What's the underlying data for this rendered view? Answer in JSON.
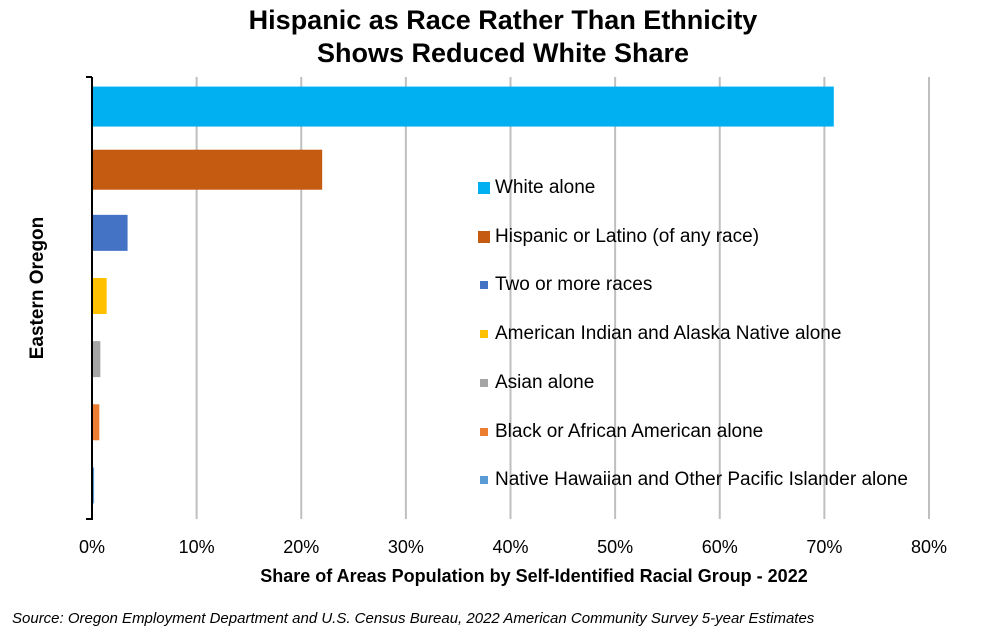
{
  "chart_data": {
    "type": "bar",
    "orientation": "horizontal",
    "title": "Hispanic as Race Rather Than Ethnicity Shows Reduced White Share",
    "title_lines": [
      "Hispanic as Race Rather Than Ethnicity",
      "Shows Reduced White Share"
    ],
    "xlabel": "Share of Areas Population by Self-Identified Racial Group - 2022",
    "ylabel": "Eastern Oregon",
    "categories": [
      "Eastern Oregon"
    ],
    "xlim": [
      0,
      80
    ],
    "x_ticks": [
      0,
      10,
      20,
      30,
      40,
      50,
      60,
      70,
      80
    ],
    "x_tick_labels": [
      "0%",
      "10%",
      "20%",
      "30%",
      "40%",
      "50%",
      "60%",
      "70%",
      "80%"
    ],
    "grid": "vertical",
    "legend_position": "right-center",
    "series": [
      {
        "name": "White alone",
        "values": [
          70.9
        ],
        "color": "#00B0F0"
      },
      {
        "name": "Hispanic or Latino (of any race)",
        "values": [
          22.0
        ],
        "color": "#C55A11"
      },
      {
        "name": "Two or more races",
        "values": [
          3.4
        ],
        "color": "#4472C4"
      },
      {
        "name": "American Indian and Alaska Native alone",
        "values": [
          1.4
        ],
        "color": "#FFC000"
      },
      {
        "name": "Asian alone",
        "values": [
          0.8
        ],
        "color": "#A5A5A5"
      },
      {
        "name": "Black or African American alone",
        "values": [
          0.7
        ],
        "color": "#ED7D31"
      },
      {
        "name": "Native Hawaiian and Other Pacific Islander alone",
        "values": [
          0.2
        ],
        "color": "#5B9BD5"
      }
    ],
    "source": "Source: Oregon Employment Department and U.S. Census Bureau, 2022 American Community Survey 5-year Estimates"
  }
}
